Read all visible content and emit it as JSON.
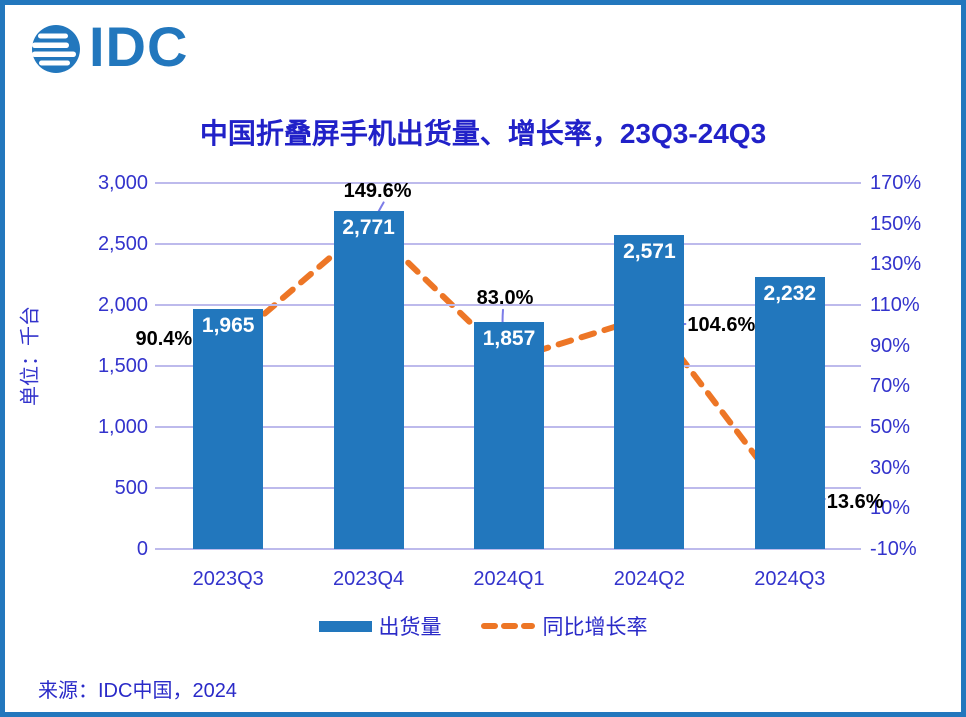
{
  "logo": {
    "text": "IDC"
  },
  "title": "中国折叠屏手机出货量、增长率，23Q3-24Q3",
  "y_axis_title": "单位：千台",
  "source": "来源：IDC中国，2024",
  "legend": {
    "bar_label": "出货量",
    "line_label": "同比增长率"
  },
  "colors": {
    "bar": "#2277BD",
    "line": "#ED7626",
    "grid": "#BDBAEC",
    "axis_text": "#3333CC",
    "title_text": "#2121C8",
    "bar_value_label": "#FFFFFF",
    "growth_label": "#000000",
    "leader_line": "#7C7CE8",
    "page_border": "#2277BD"
  },
  "chart_data": {
    "type": "bar",
    "subtype": "combo-bar-line-dual-axis",
    "title": "中国折叠屏手机出货量、增长率，23Q3-24Q3",
    "categories": [
      "2023Q3",
      "2023Q4",
      "2024Q1",
      "2024Q2",
      "2024Q3"
    ],
    "series": [
      {
        "name": "出货量",
        "type": "bar",
        "axis": "left",
        "values": [
          1965,
          2771,
          1857,
          2571,
          2232
        ],
        "labels": [
          "1,965",
          "2,771",
          "1,857",
          "2,571",
          "2,232"
        ]
      },
      {
        "name": "同比增长率",
        "type": "line",
        "axis": "right",
        "values": [
          90.4,
          149.6,
          83.0,
          104.6,
          13.6
        ],
        "labels": [
          "90.4%",
          "149.6%",
          "83.0%",
          "104.6%",
          "13.6%"
        ]
      }
    ],
    "left_axis": {
      "title": "单位：千台",
      "min": 0,
      "max": 3000,
      "tick_step": 500,
      "ticks": [
        "0",
        "500",
        "1,000",
        "1,500",
        "2,000",
        "2,500",
        "3,000"
      ]
    },
    "right_axis": {
      "min": -10,
      "max": 170,
      "tick_step": 20,
      "ticks": [
        "-10%",
        "10%",
        "30%",
        "50%",
        "70%",
        "90%",
        "110%",
        "130%",
        "150%",
        "170%"
      ]
    },
    "grid": "horizontal",
    "legend_position": "bottom"
  }
}
